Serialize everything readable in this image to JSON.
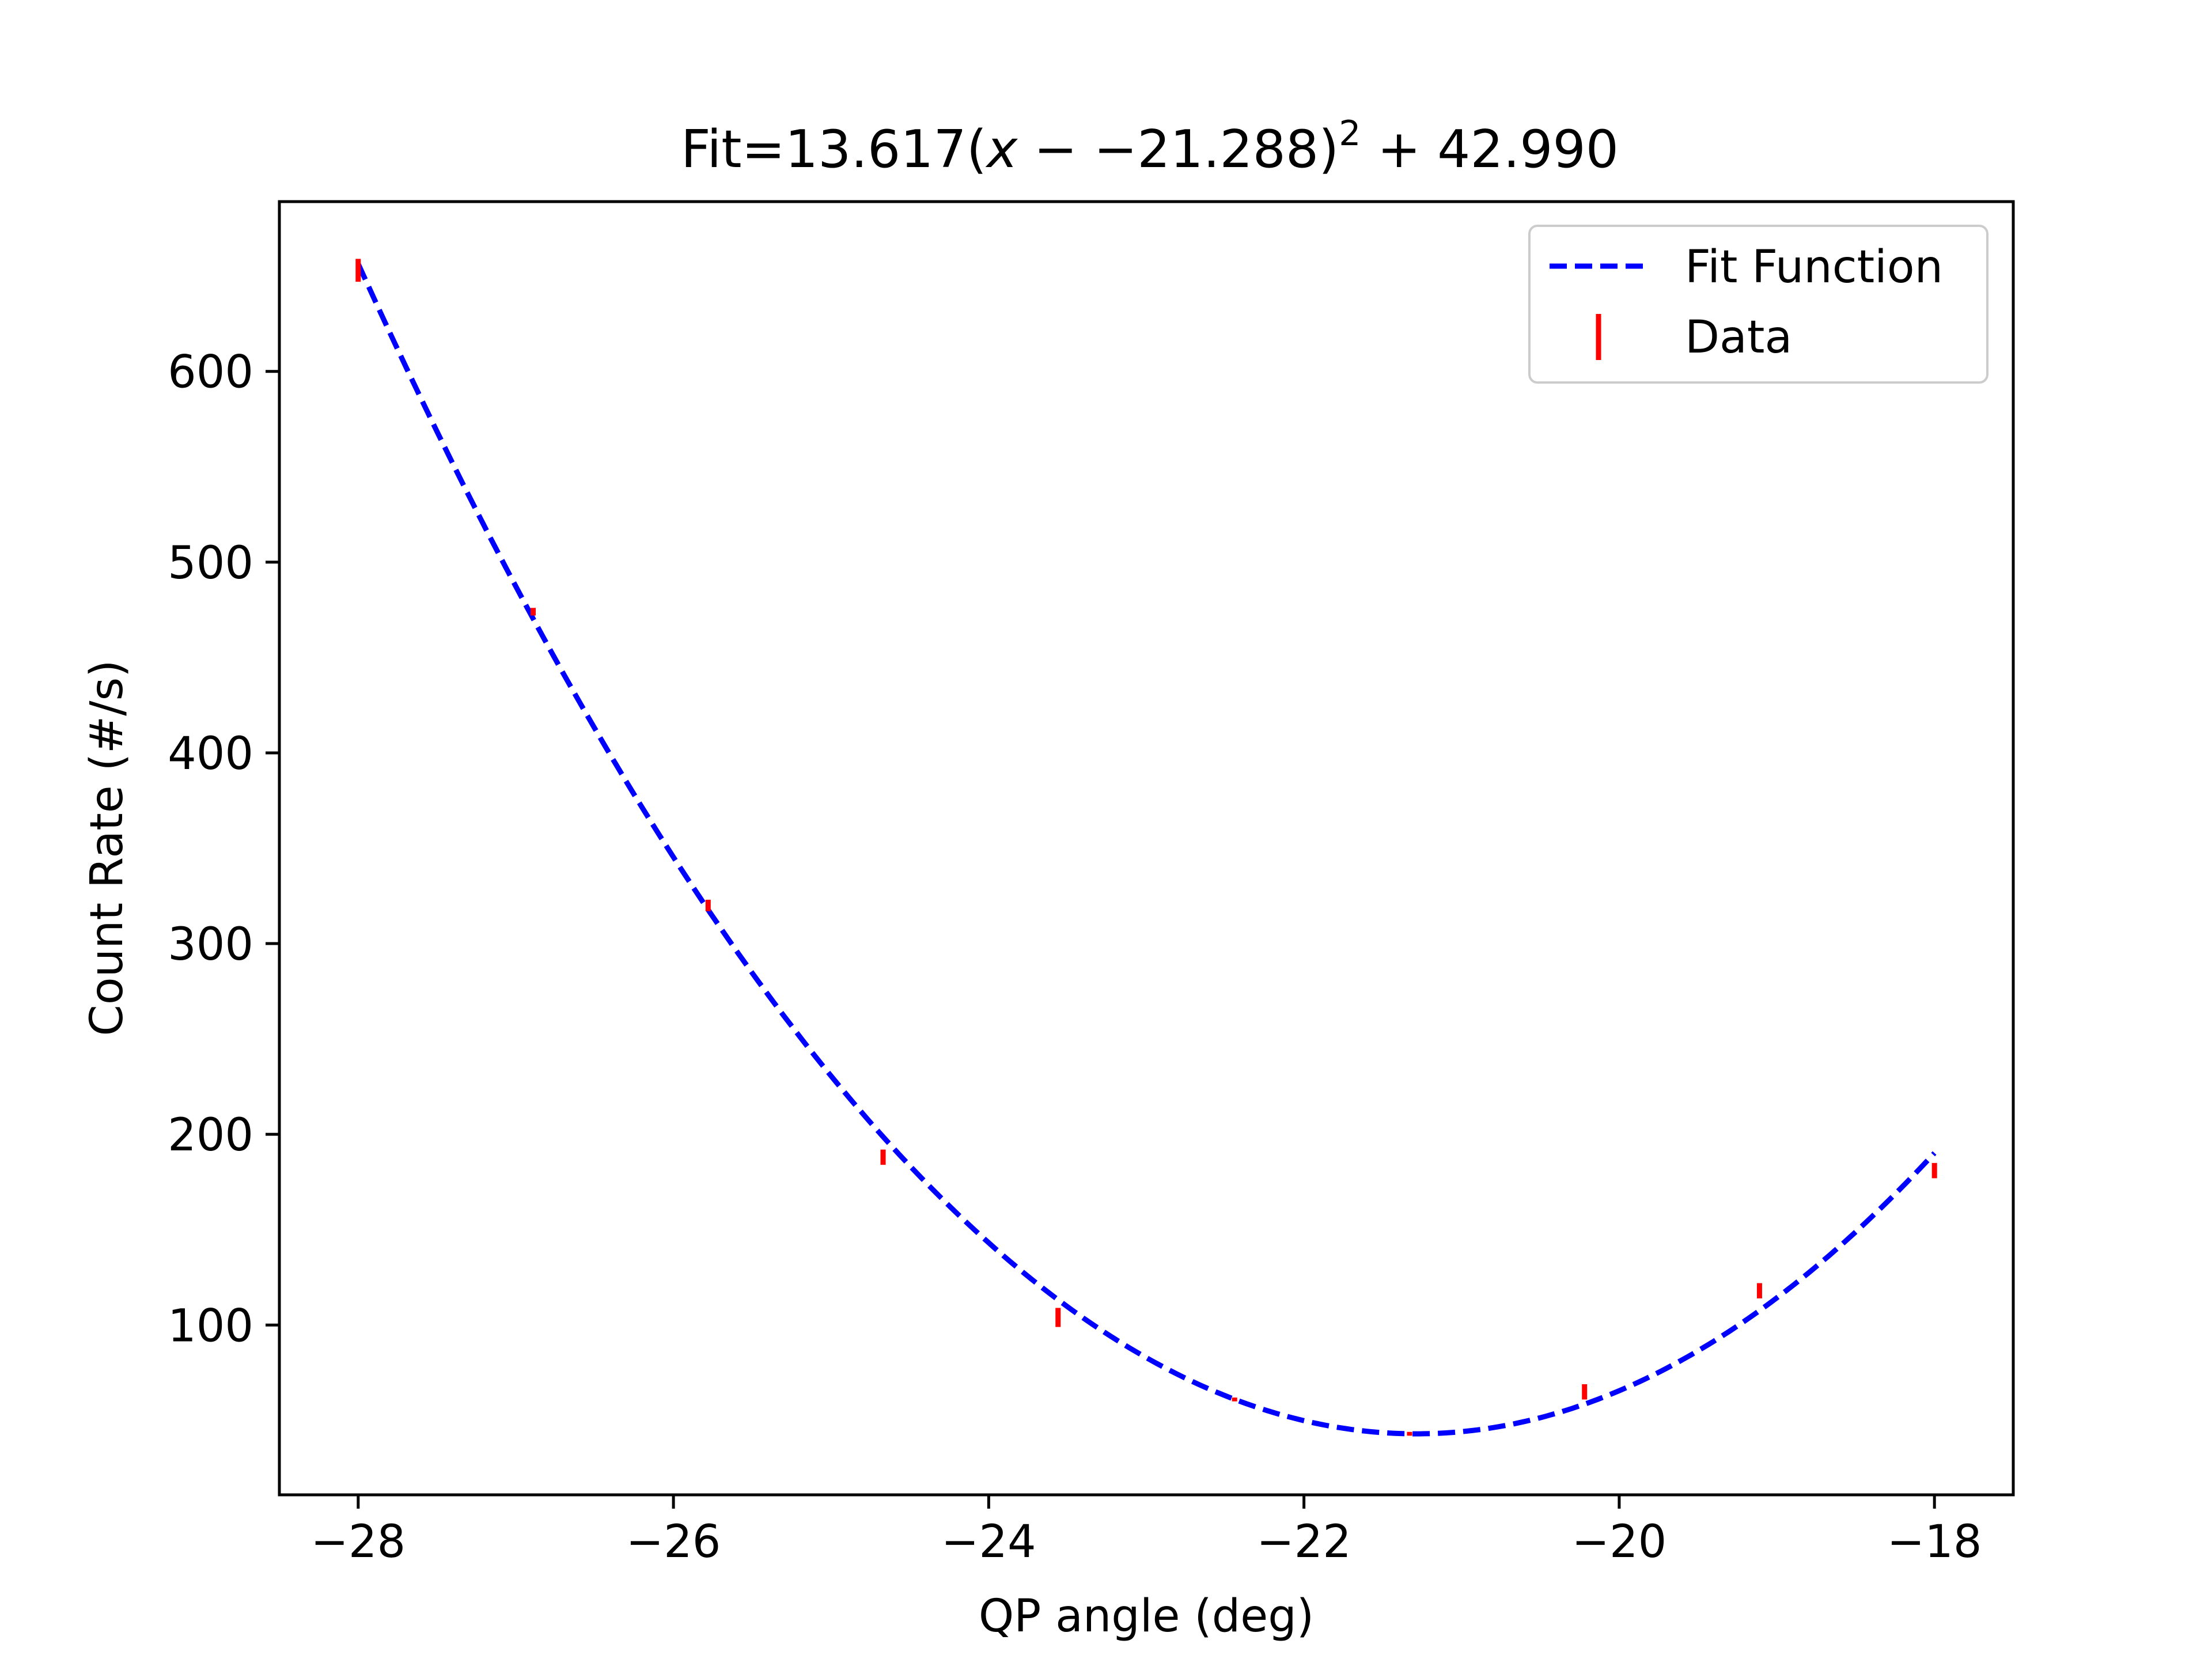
{
  "chart_data": {
    "type": "scatter",
    "title_parts": {
      "lead": "Fit=13.617(",
      "var": "x",
      "mid": " − −21.288)",
      "exp": "2",
      "tail": " + 42.990"
    },
    "xlabel": "QP angle (deg)",
    "ylabel": "Count Rate (#/s)",
    "xlim": [
      -28.5,
      -17.5
    ],
    "ylim": [
      11,
      689
    ],
    "xticks": [
      -28,
      -26,
      -24,
      -22,
      -20,
      -18
    ],
    "xtick_labels": [
      "−28",
      "−26",
      "−24",
      "−22",
      "−20",
      "−18"
    ],
    "yticks": [
      100,
      200,
      300,
      400,
      500,
      600
    ],
    "ytick_labels": [
      "100",
      "200",
      "300",
      "400",
      "500",
      "600"
    ],
    "grid": false,
    "legend_position": "top-right",
    "fit": {
      "a": 13.617,
      "x0": -21.288,
      "c": 42.99,
      "x_range": [
        -28,
        -18
      ]
    },
    "series": [
      {
        "name": "Fit Function",
        "kind": "line",
        "style": "dashed",
        "color": "#0000ff"
      },
      {
        "name": "Data",
        "kind": "errorbar",
        "color": "#ff0000",
        "x": [
          -28,
          -26.89,
          -25.78,
          -24.67,
          -23.56,
          -22.44,
          -21.33,
          -20.22,
          -19.11,
          -18
        ],
        "y": [
          653,
          474,
          320,
          188,
          104,
          61,
          43,
          65,
          118,
          181
        ],
        "yerr": [
          6,
          2,
          3,
          4,
          5,
          1,
          1,
          4,
          4,
          4
        ]
      }
    ],
    "colors": {
      "fit": "#0000ff",
      "data": "#ff0000",
      "axes": "#000000",
      "legend_border": "#cccccc"
    }
  }
}
